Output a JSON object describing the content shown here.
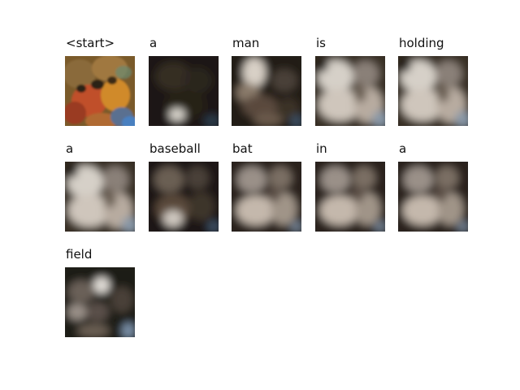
{
  "figure": {
    "panels": [
      {
        "word": "<start>",
        "style": "original"
      },
      {
        "word": "a",
        "style": "dark"
      },
      {
        "word": "man",
        "style": "left-bright"
      },
      {
        "word": "is",
        "style": "bright"
      },
      {
        "word": "holding",
        "style": "bright"
      },
      {
        "word": "a",
        "style": "bright"
      },
      {
        "word": "baseball",
        "style": "dim"
      },
      {
        "word": "bat",
        "style": "medium"
      },
      {
        "word": "in",
        "style": "medium"
      },
      {
        "word": "a",
        "style": "medium"
      },
      {
        "word": "field",
        "style": "field"
      }
    ]
  }
}
